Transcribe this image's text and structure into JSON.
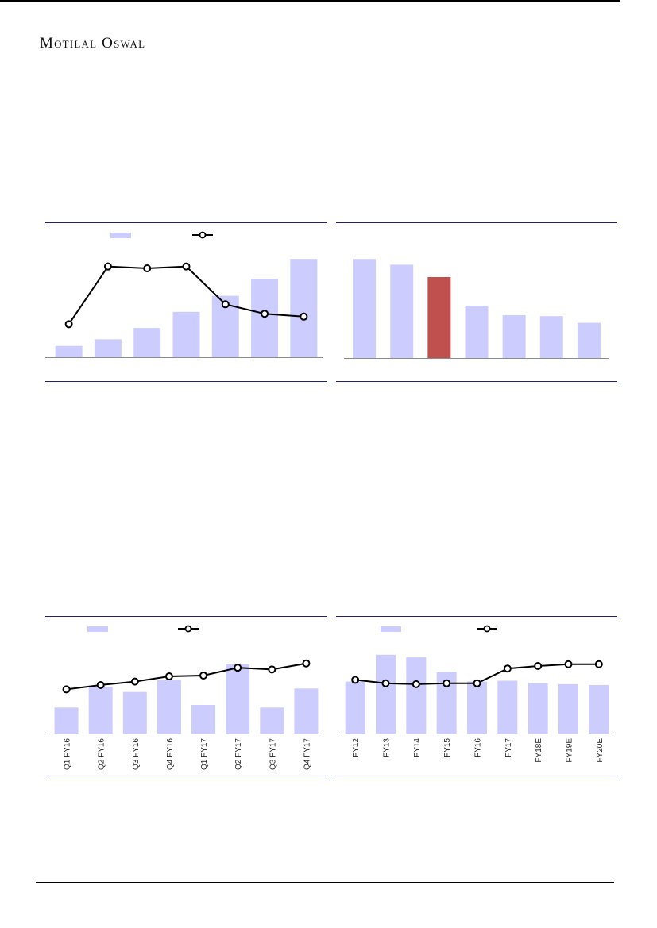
{
  "header": {
    "brand": "Motilal Oswal"
  },
  "colors": {
    "bar": "#ccccff",
    "highlight_bar": "#c0504d",
    "line": "#000000",
    "rule": "#1f1f7a"
  },
  "chart_data": [
    {
      "type": "bar",
      "categories": [
        "",
        "",
        "",
        "",
        "",
        "",
        ""
      ],
      "series": [
        {
          "type": "bar",
          "values": [
            12,
            19,
            31,
            48,
            65,
            83,
            104
          ]
        },
        {
          "type": "line",
          "values": [
            35,
            96,
            94,
            96,
            56,
            46,
            43
          ]
        }
      ],
      "ylim": [
        0,
        110
      ],
      "legend": "top-center"
    },
    {
      "type": "bar",
      "categories": [
        "",
        "",
        "",
        "",
        "",
        "",
        ""
      ],
      "values": [
        104,
        98,
        85,
        55,
        45,
        44,
        37
      ],
      "highlight_index": 2,
      "ylim": [
        0,
        110
      ]
    },
    {
      "type": "bar",
      "categories": [
        "Q1 FY16",
        "Q2 FY16",
        "Q3 FY16",
        "Q4 FY16",
        "Q1 FY17",
        "Q2 FY17",
        "Q3 FY17",
        "Q4 FY17"
      ],
      "series": [
        {
          "type": "bar",
          "values": [
            30,
            54,
            48,
            62,
            33,
            80,
            30,
            52
          ]
        },
        {
          "type": "line",
          "values": [
            51,
            56,
            60,
            66,
            67,
            76,
            74,
            81
          ]
        }
      ],
      "ylim": [
        0,
        100
      ],
      "legend": "top-center"
    },
    {
      "type": "bar",
      "categories": [
        "FY12",
        "FY13",
        "FY14",
        "FY15",
        "FY16",
        "FY17",
        "FY18E",
        "FY19E",
        "FY20E"
      ],
      "series": [
        {
          "type": "bar",
          "values": [
            60,
            91,
            88,
            71,
            60,
            61,
            58,
            57,
            56
          ]
        },
        {
          "type": "line",
          "values": [
            62,
            58,
            57,
            58,
            58,
            75,
            78,
            80,
            80
          ]
        }
      ],
      "ylim": [
        0,
        100
      ],
      "legend": "top-center"
    }
  ]
}
